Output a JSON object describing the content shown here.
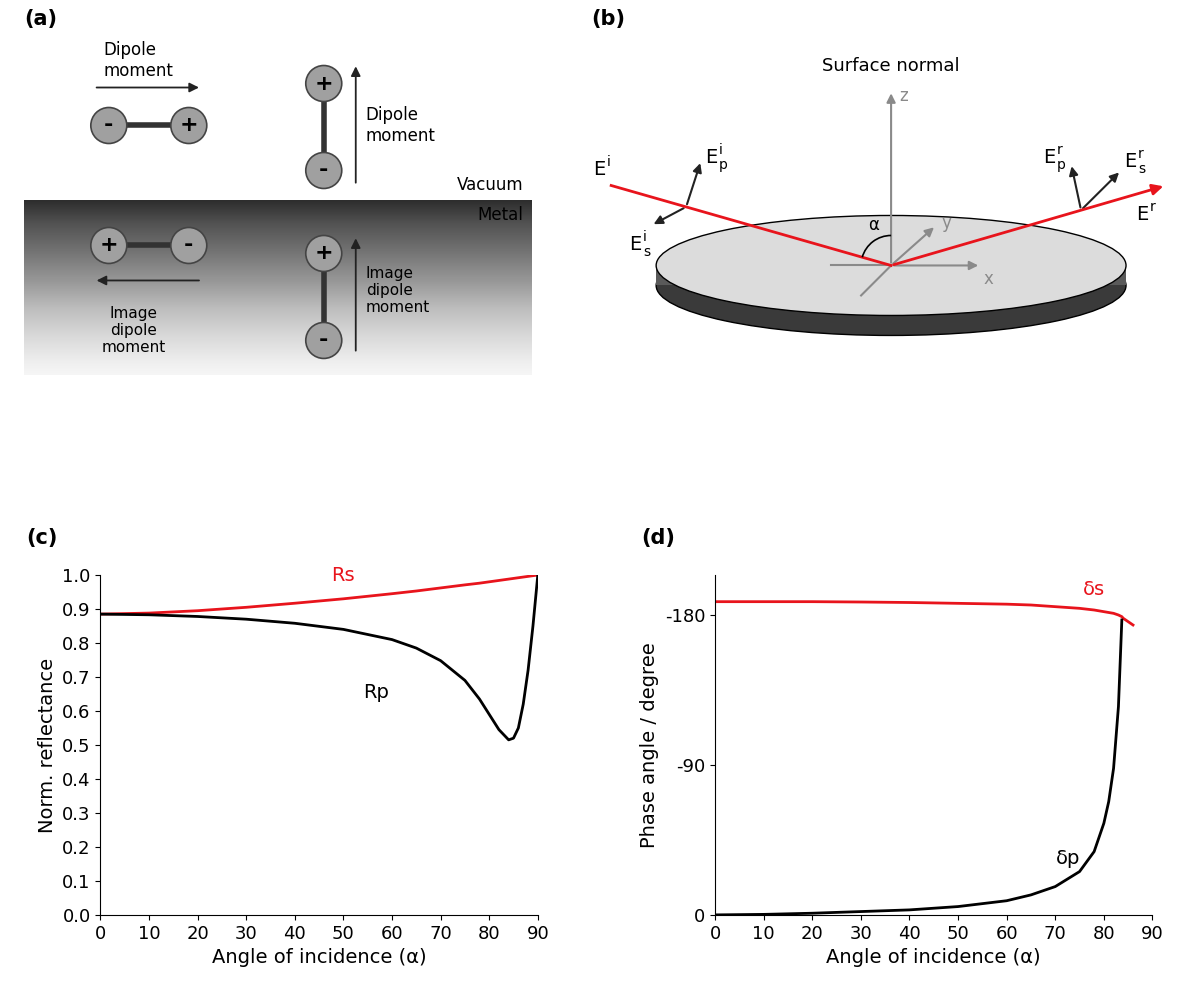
{
  "diagram_a": {
    "title": "(a)",
    "vacuum": "Vacuum",
    "metal": "Metal",
    "dipoles": [
      {
        "label": "Dipole\nmoment",
        "charges": [
          "-",
          "+"
        ]
      },
      {
        "label": "Dipole\nmoment",
        "charges": [
          "-",
          "+"
        ]
      }
    ],
    "image_dipoles": [
      {
        "label": "Image\ndipole\nmoment",
        "charges": [
          "+",
          "-"
        ]
      },
      {
        "label": "Image\ndipole\nmoment",
        "charges": [
          "-",
          "+"
        ]
      }
    ]
  },
  "diagram_b": {
    "title": "(b)",
    "surface_normal": "Surface normal",
    "axes": {
      "x": "x",
      "y": "y",
      "z": "z"
    },
    "angle": "α",
    "incident": {
      "field": {
        "base": "E",
        "sup": "i"
      },
      "p": {
        "base": "E",
        "sup": "i",
        "sub": "p"
      },
      "s": {
        "base": "E",
        "sup": "i",
        "sub": "s"
      }
    },
    "reflected": {
      "field": {
        "base": "E",
        "sup": "r"
      },
      "p": {
        "base": "E",
        "sup": "r",
        "sub": "p"
      },
      "s": {
        "base": "E",
        "sup": "r",
        "sub": "s"
      }
    }
  },
  "chart_data": [
    {
      "type": "line",
      "title": "(c)",
      "x_label": "Angle of incidence (α)",
      "y_label": "Norm. reflectance",
      "x": [
        0,
        10,
        20,
        30,
        40,
        50,
        60,
        65,
        70,
        75,
        78,
        80,
        82,
        84,
        85,
        86,
        87,
        88,
        89,
        90
      ],
      "series": [
        {
          "name": "Rs",
          "color": "#e8141c",
          "values": [
            0.885,
            0.888,
            0.895,
            0.905,
            0.917,
            0.93,
            0.945,
            0.953,
            0.962,
            0.971,
            0.976,
            0.98,
            0.984,
            0.988,
            0.99,
            0.992,
            0.994,
            0.996,
            0.998,
            1.0
          ]
        },
        {
          "name": "Rp",
          "color": "#000000",
          "values": [
            0.885,
            0.883,
            0.878,
            0.87,
            0.858,
            0.84,
            0.81,
            0.785,
            0.748,
            0.69,
            0.635,
            0.59,
            0.545,
            0.515,
            0.52,
            0.55,
            0.62,
            0.72,
            0.85,
            1.0
          ]
        }
      ],
      "xlim": [
        0,
        90
      ],
      "xticks": [
        0,
        10,
        20,
        30,
        40,
        50,
        60,
        70,
        80,
        90
      ],
      "ylim": [
        0,
        1
      ],
      "yticks": [
        {
          "value": 0,
          "label": "0.0"
        },
        {
          "value": 0.1,
          "label": "0.1"
        },
        {
          "value": 0.2,
          "label": "0.2"
        },
        {
          "value": 0.3,
          "label": "0.3"
        },
        {
          "value": 0.4,
          "label": "0.4"
        },
        {
          "value": 0.5,
          "label": "0.5"
        },
        {
          "value": 0.6,
          "label": "0.6"
        },
        {
          "value": 0.7,
          "label": "0.7"
        },
        {
          "value": 0.8,
          "label": "0.8"
        },
        {
          "value": 0.9,
          "label": "0.9"
        },
        {
          "value": 1,
          "label": "1.0"
        }
      ],
      "grid": false
    },
    {
      "type": "line",
      "title": "(d)",
      "x_label": "Angle of incidence (α)",
      "y_label": "Phase angle / degree",
      "x": [
        0,
        10,
        20,
        30,
        40,
        50,
        60,
        65,
        70,
        75,
        78,
        80,
        81,
        82,
        83,
        83.7,
        84,
        86
      ],
      "series": [
        {
          "name": "δs",
          "color": "#e8141c",
          "values": [
            -188,
            -188,
            -188,
            -187.8,
            -187.5,
            -187,
            -186.5,
            -186,
            -185,
            -184,
            -183,
            -182,
            -181.5,
            -181,
            -180,
            -179,
            -178,
            -174
          ]
        },
        {
          "name": "δp",
          "color": "#000000",
          "values": [
            0,
            -0.3,
            -1,
            -2,
            -3,
            -5,
            -8.5,
            -12,
            -17,
            -26,
            -38,
            -55,
            -68,
            -88,
            -125,
            -177,
            null,
            null
          ]
        }
      ],
      "xlim": [
        0,
        90
      ],
      "xticks": [
        0,
        10,
        20,
        30,
        40,
        50,
        60,
        70,
        80,
        90
      ],
      "ylim": [
        0,
        -204
      ],
      "yticks": [
        0,
        -90,
        -180
      ],
      "grid": false
    }
  ]
}
